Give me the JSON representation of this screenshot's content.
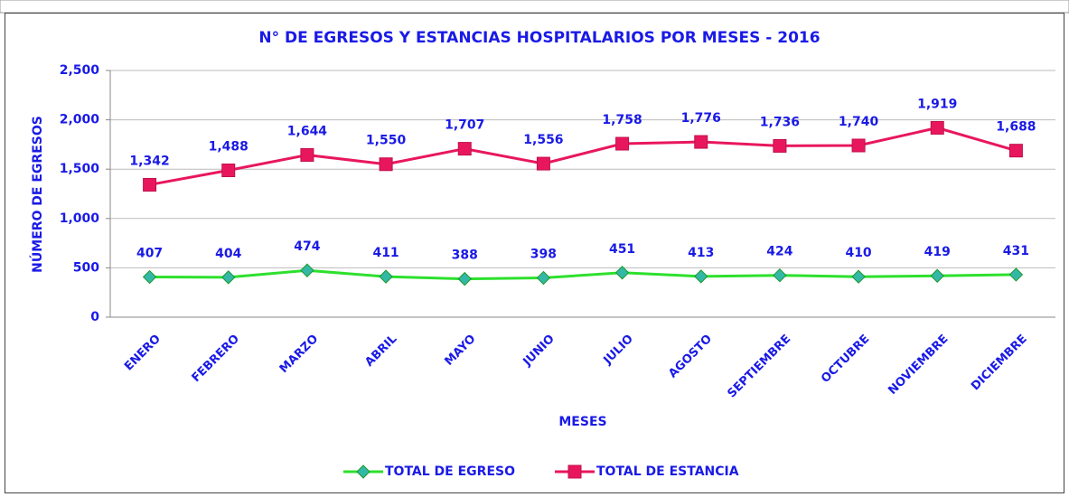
{
  "chart_data": {
    "type": "line",
    "title": "N° DE EGRESOS Y ESTANCIAS HOSPITALARIOS POR MESES - 2016",
    "x_label": "MESES",
    "y_label": "NÚMERO DE EGRESOS",
    "categories": [
      "ENERO",
      "FEBRERO",
      "MARZO",
      "ABRIL",
      "MAYO",
      "JUNIO",
      "JULIO",
      "AGOSTO",
      "SEPTIEMBRE",
      "OCTUBRE",
      "NOVIEMBRE",
      "DICIEMBRE"
    ],
    "series": [
      {
        "name": "TOTAL DE EGRESO",
        "color": "#2de02d",
        "marker": "diamond",
        "marker_color": "#33b8a8",
        "values": [
          407,
          404,
          474,
          411,
          388,
          398,
          451,
          413,
          424,
          410,
          419,
          431
        ]
      },
      {
        "name": "TOTAL DE ESTANCIA",
        "color": "#e8175d",
        "marker": "square",
        "marker_color": "#e8175d",
        "values": [
          1342,
          1488,
          1644,
          1550,
          1707,
          1556,
          1758,
          1776,
          1736,
          1740,
          1919,
          1688
        ],
        "value_labels": [
          "1,342",
          "1,488",
          "1,644",
          "1,550",
          "1,707",
          "1,556",
          "1,758",
          "1,776",
          "1,736",
          "1,740",
          "1,919",
          "1,688"
        ]
      }
    ],
    "ylim": [
      0,
      2500
    ],
    "yticks": [
      0,
      500,
      {
        "value": 1000,
        "label": "1,000"
      },
      {
        "value": 1500,
        "label": "1,500"
      },
      {
        "value": 2000,
        "label": "2,000"
      },
      {
        "value": 2500,
        "label": "2,500"
      }
    ],
    "grid": true,
    "legend": "bottom"
  }
}
